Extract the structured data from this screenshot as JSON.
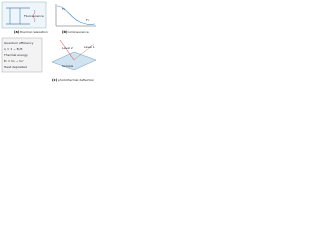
{
  "panels": [
    {
      "tag": "(a)",
      "caption": "thermal relaxation",
      "labels": [
        "Fluorescence"
      ]
    },
    {
      "tag": "(b)",
      "caption": "luminescence",
      "labels": [
        "F₀",
        "F₁"
      ]
    },
    {
      "tag": "(c)",
      "caption": "photothermal deflection",
      "labels": [
        "Sample",
        "Level 1",
        "Level 2"
      ]
    }
  ],
  "notes": [
    "Quantum efficiency",
    "η = 1 − Eₜ/E",
    "Thermal energy",
    "Eₜ = hν − hν'",
    "Heat deposited"
  ]
}
